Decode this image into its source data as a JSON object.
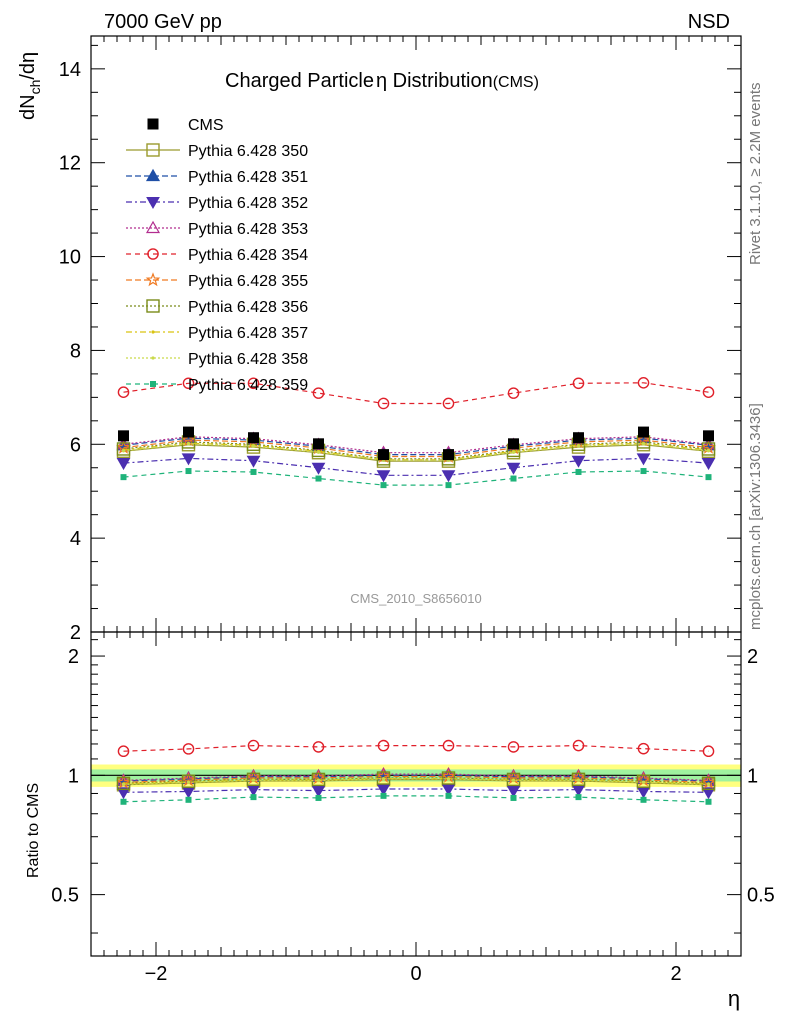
{
  "header": {
    "left": "7000 GeV pp",
    "right": "NSD"
  },
  "side_labels": {
    "rivet": "Rivet 3.1.10, ≥ 2.2M events",
    "mcplots": "mcplots.cern.ch [arXiv:1306.3436]"
  },
  "analysis_id": "CMS_2010_S8656010",
  "chart_data": {
    "type": "line",
    "title_main": "Charged Particle",
    "title_eta": "η",
    "title_rest": " Distribution",
    "title_suffix": "(CMS)",
    "xlabel": "η",
    "ylabel_top_main": "dN",
    "ylabel_top_sub": "ch",
    "ylabel_top_rest": "/dη",
    "ylabel_ratio": "Ratio to CMS",
    "xlim": [
      -2.5,
      2.5
    ],
    "ylim_top": [
      2,
      14.7
    ],
    "ylim_ratio": [
      0.35,
      2.3
    ],
    "x_ticks": [
      -2,
      0,
      2
    ],
    "x_tick_labels": [
      "−2",
      "0",
      "2"
    ],
    "y_ticks_top": [
      2,
      4,
      6,
      8,
      10,
      12,
      14
    ],
    "y_tick_labels_top": [
      "2",
      "4",
      "6",
      "8",
      "10",
      "12",
      "14"
    ],
    "y_ticks_ratio": [
      0.5,
      1,
      2
    ],
    "y_tick_labels_ratio": [
      "0.5",
      "1",
      "2"
    ],
    "x": [
      -2.25,
      -1.75,
      -1.25,
      -0.75,
      -0.25,
      0.25,
      0.75,
      1.25,
      1.75,
      2.25
    ],
    "data": {
      "name": "CMS",
      "values": [
        6.18,
        6.26,
        6.14,
        6.01,
        5.78,
        5.78,
        6.01,
        6.14,
        6.26,
        6.18
      ],
      "band_inner": 0.035,
      "band_outer": 0.065
    },
    "series": [
      {
        "name": "Pythia 6.428 350",
        "color": "#9b9b2e",
        "dash": "",
        "marker": "square-open",
        "values": [
          5.85,
          5.99,
          5.94,
          5.82,
          5.64,
          5.64,
          5.82,
          5.94,
          5.99,
          5.85
        ]
      },
      {
        "name": "Pythia 6.428 351",
        "color": "#1f4fa6",
        "dash": "6,3",
        "marker": "triangle-up-filled",
        "values": [
          5.98,
          6.13,
          6.09,
          5.96,
          5.78,
          5.78,
          5.96,
          6.09,
          6.13,
          5.98
        ]
      },
      {
        "name": "Pythia 6.428 352",
        "color": "#4b2fb0",
        "dash": "6,3,2,3",
        "marker": "triangle-down-filled",
        "values": [
          5.6,
          5.7,
          5.65,
          5.5,
          5.34,
          5.34,
          5.5,
          5.65,
          5.7,
          5.6
        ]
      },
      {
        "name": "Pythia 6.428 353",
        "color": "#b22d8f",
        "dash": "2,2",
        "marker": "triangle-up-open",
        "values": [
          6.0,
          6.16,
          6.12,
          5.99,
          5.82,
          5.82,
          5.99,
          6.12,
          6.16,
          6.0
        ]
      },
      {
        "name": "Pythia 6.428 354",
        "color": "#e0202a",
        "dash": "5,4",
        "marker": "circle-open",
        "values": [
          7.11,
          7.3,
          7.3,
          7.09,
          6.87,
          6.87,
          7.09,
          7.3,
          7.31,
          7.11
        ]
      },
      {
        "name": "Pythia 6.428 355",
        "color": "#f07a22",
        "dash": "6,3",
        "marker": "star-open",
        "values": [
          5.93,
          6.09,
          6.05,
          5.92,
          5.74,
          5.74,
          5.92,
          6.05,
          6.09,
          5.93
        ]
      },
      {
        "name": "Pythia 6.428 356",
        "color": "#7a8c1a",
        "dash": "2,2",
        "marker": "square-open",
        "values": [
          5.9,
          6.05,
          6.0,
          5.87,
          5.69,
          5.69,
          5.87,
          6.0,
          6.05,
          5.9
        ]
      },
      {
        "name": "Pythia 6.428 357",
        "color": "#d9c312",
        "dash": "6,3,2,3",
        "marker": "dot",
        "values": [
          5.88,
          6.02,
          5.98,
          5.85,
          5.67,
          5.67,
          5.85,
          5.98,
          6.02,
          5.88
        ]
      },
      {
        "name": "Pythia 6.428 358",
        "color": "#c9d94a",
        "dash": "2,2",
        "marker": "dot",
        "values": [
          5.86,
          6.01,
          5.96,
          5.83,
          5.66,
          5.66,
          5.83,
          5.96,
          6.01,
          5.86
        ]
      },
      {
        "name": "Pythia 6.428 359",
        "color": "#1fb37a",
        "dash": "5,4",
        "marker": "square-filled-small",
        "values": [
          5.3,
          5.43,
          5.41,
          5.27,
          5.13,
          5.13,
          5.27,
          5.41,
          5.43,
          5.3
        ]
      }
    ]
  }
}
